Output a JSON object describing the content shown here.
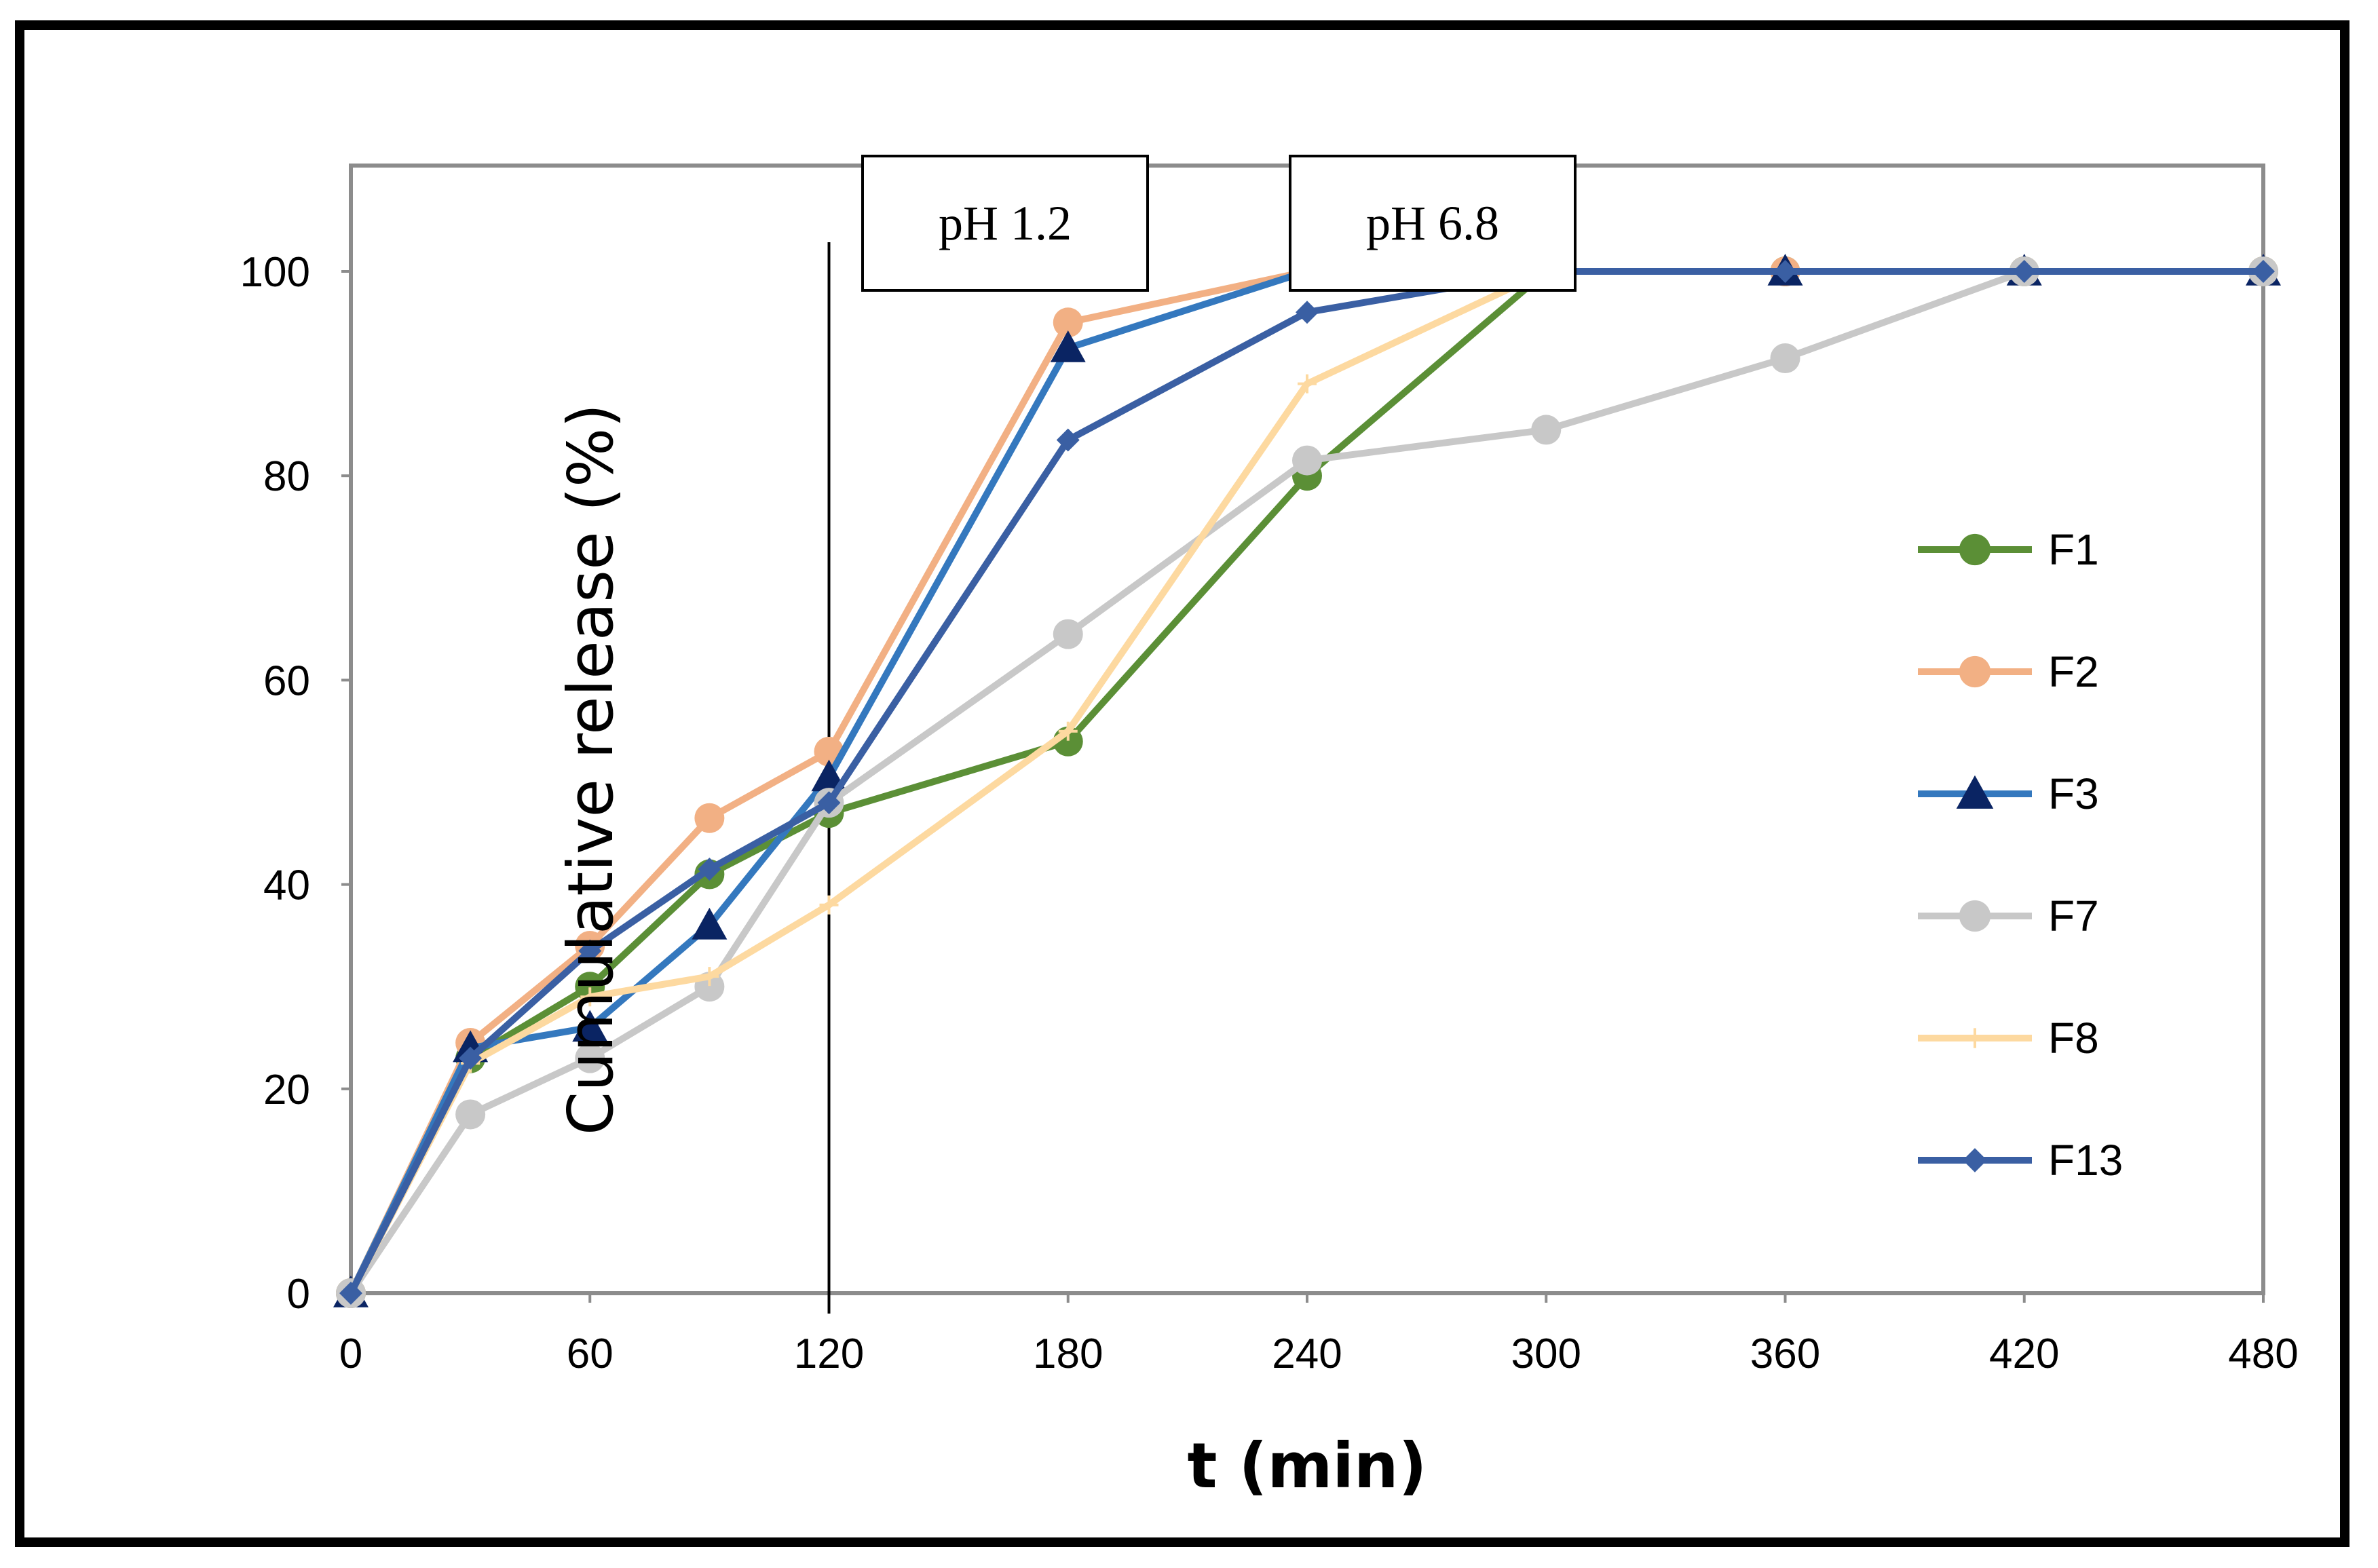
{
  "chart_data": {
    "type": "line",
    "title": "",
    "xlabel": "t (min)",
    "ylabel": "Cumulative release (%)",
    "xlim": [
      0,
      480
    ],
    "ylim": [
      0,
      110
    ],
    "xticks": [
      "0",
      "60",
      "120",
      "180",
      "240",
      "300",
      "360",
      "420",
      "480"
    ],
    "yticks": [
      "0",
      "20",
      "40",
      "60",
      "80",
      "100"
    ],
    "grid": false,
    "legend_position": "right",
    "phase_marker_x": 120,
    "annotations": [
      {
        "label": "pH 1.2",
        "x": 165
      },
      {
        "label": "pH 6.8",
        "x": 272
      }
    ],
    "series": [
      {
        "name": "F1",
        "color": "#5b8f36",
        "marker": "circle",
        "x": [
          0,
          30,
          60,
          90,
          120,
          180,
          240,
          300,
          360,
          420,
          480
        ],
        "y": [
          0,
          23,
          30,
          41,
          47,
          54,
          80,
          100,
          100,
          100,
          100
        ]
      },
      {
        "name": "F2",
        "color": "#f2b084",
        "marker": "circle",
        "x": [
          0,
          30,
          60,
          90,
          120,
          180,
          240,
          300,
          360,
          420,
          480
        ],
        "y": [
          0,
          24.5,
          34,
          46.5,
          53,
          95,
          100,
          100,
          100,
          100,
          100
        ]
      },
      {
        "name": "F3",
        "color": "#3478be",
        "marker": "triangle",
        "x": [
          0,
          30,
          60,
          90,
          120,
          180,
          240,
          300,
          360,
          420,
          480
        ],
        "y": [
          0,
          24,
          26,
          36,
          50.5,
          92.5,
          100,
          100,
          100,
          100,
          100
        ]
      },
      {
        "name": "F7",
        "color": "#c8c8c8",
        "marker": "circle",
        "x": [
          0,
          30,
          60,
          90,
          120,
          180,
          240,
          300,
          360,
          420,
          480
        ],
        "y": [
          0,
          17.5,
          23,
          30,
          48,
          64.5,
          81.5,
          84.5,
          91.5,
          100,
          100
        ]
      },
      {
        "name": "F8",
        "color": "#fdd9a0",
        "marker": "plus",
        "x": [
          0,
          30,
          60,
          90,
          120,
          180,
          240,
          300,
          360,
          420,
          480
        ],
        "y": [
          0,
          22.5,
          29,
          31,
          38,
          55,
          89,
          100,
          100,
          100,
          100
        ]
      },
      {
        "name": "F13",
        "color": "#3a5fa3",
        "marker": "diamond",
        "x": [
          0,
          30,
          60,
          90,
          120,
          180,
          240,
          300,
          360,
          420,
          480
        ],
        "y": [
          0,
          23,
          33.5,
          41.5,
          48,
          83.5,
          96,
          100,
          100,
          100,
          100
        ]
      }
    ]
  }
}
